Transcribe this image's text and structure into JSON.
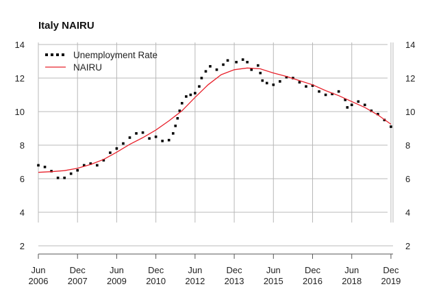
{
  "chart_data": {
    "type": "line",
    "title": "Italy NAIRU",
    "xlabel": "",
    "ylabel": "",
    "ylim": [
      1.5,
      14.2
    ],
    "y_ticks": [
      "2",
      "4",
      "6",
      "8",
      "10",
      "12",
      "14"
    ],
    "x_ticks": [
      {
        "month": "Jun",
        "year": "2006",
        "t": 2006.42
      },
      {
        "month": "Dec",
        "year": "2007",
        "t": 2007.92
      },
      {
        "month": "Jun",
        "year": "2009",
        "t": 2009.42
      },
      {
        "month": "Dec",
        "year": "2010",
        "t": 2010.92
      },
      {
        "month": "Jun",
        "year": "2012",
        "t": 2012.42
      },
      {
        "month": "Dec",
        "year": "2013",
        "t": 2013.92
      },
      {
        "month": "Jun",
        "year": "2015",
        "t": 2015.42
      },
      {
        "month": "Dec",
        "year": "2016",
        "t": 2016.92
      },
      {
        "month": "Jun",
        "year": "2018",
        "t": 2018.42
      },
      {
        "month": "Dec",
        "year": "2019",
        "t": 2019.92
      }
    ],
    "xlim": [
      2006.42,
      2020.0
    ],
    "grid": true,
    "legend_position": "top-left",
    "series": [
      {
        "name": "Unemployment Rate",
        "style": "dotted",
        "color": "#000000",
        "points": [
          [
            2006.42,
            6.8
          ],
          [
            2006.67,
            6.7
          ],
          [
            2006.92,
            6.45
          ],
          [
            2007.17,
            6.05
          ],
          [
            2007.42,
            6.05
          ],
          [
            2007.67,
            6.3
          ],
          [
            2007.92,
            6.5
          ],
          [
            2008.17,
            6.8
          ],
          [
            2008.42,
            6.9
          ],
          [
            2008.67,
            6.8
          ],
          [
            2008.92,
            7.1
          ],
          [
            2009.17,
            7.55
          ],
          [
            2009.42,
            7.8
          ],
          [
            2009.67,
            8.1
          ],
          [
            2009.92,
            8.45
          ],
          [
            2010.17,
            8.7
          ],
          [
            2010.42,
            8.75
          ],
          [
            2010.67,
            8.4
          ],
          [
            2010.92,
            8.5
          ],
          [
            2011.17,
            8.25
          ],
          [
            2011.42,
            8.3
          ],
          [
            2011.58,
            8.7
          ],
          [
            2011.67,
            9.15
          ],
          [
            2011.75,
            9.6
          ],
          [
            2011.83,
            10.05
          ],
          [
            2011.92,
            10.5
          ],
          [
            2012.08,
            10.9
          ],
          [
            2012.25,
            11.0
          ],
          [
            2012.42,
            11.1
          ],
          [
            2012.58,
            11.5
          ],
          [
            2012.67,
            12.0
          ],
          [
            2012.83,
            12.4
          ],
          [
            2013.0,
            12.7
          ],
          [
            2013.25,
            12.5
          ],
          [
            2013.5,
            12.8
          ],
          [
            2013.67,
            13.05
          ],
          [
            2014.0,
            12.95
          ],
          [
            2014.25,
            13.1
          ],
          [
            2014.42,
            12.95
          ],
          [
            2014.58,
            12.5
          ],
          [
            2014.83,
            12.75
          ],
          [
            2014.92,
            12.3
          ],
          [
            2015.0,
            11.85
          ],
          [
            2015.17,
            11.7
          ],
          [
            2015.42,
            11.6
          ],
          [
            2015.67,
            11.8
          ],
          [
            2015.92,
            12.05
          ],
          [
            2016.17,
            12.0
          ],
          [
            2016.42,
            11.75
          ],
          [
            2016.67,
            11.5
          ],
          [
            2016.92,
            11.55
          ],
          [
            2017.17,
            11.2
          ],
          [
            2017.42,
            11.0
          ],
          [
            2017.67,
            11.05
          ],
          [
            2017.92,
            11.2
          ],
          [
            2018.17,
            10.7
          ],
          [
            2018.25,
            10.25
          ],
          [
            2018.42,
            10.4
          ],
          [
            2018.67,
            10.6
          ],
          [
            2018.92,
            10.4
          ],
          [
            2019.17,
            10.05
          ],
          [
            2019.42,
            9.85
          ],
          [
            2019.67,
            9.5
          ],
          [
            2019.92,
            9.1
          ]
        ]
      },
      {
        "name": "NAIRU",
        "style": "solid",
        "color": "#e8202a",
        "points": [
          [
            2006.42,
            6.38
          ],
          [
            2006.92,
            6.42
          ],
          [
            2007.42,
            6.48
          ],
          [
            2007.92,
            6.62
          ],
          [
            2008.42,
            6.85
          ],
          [
            2008.92,
            7.15
          ],
          [
            2009.42,
            7.58
          ],
          [
            2009.92,
            8.05
          ],
          [
            2010.42,
            8.45
          ],
          [
            2010.92,
            8.9
          ],
          [
            2011.42,
            9.45
          ],
          [
            2011.92,
            10.05
          ],
          [
            2012.42,
            10.85
          ],
          [
            2012.92,
            11.6
          ],
          [
            2013.42,
            12.2
          ],
          [
            2013.92,
            12.5
          ],
          [
            2014.42,
            12.6
          ],
          [
            2014.92,
            12.55
          ],
          [
            2015.42,
            12.3
          ],
          [
            2015.92,
            12.1
          ],
          [
            2016.42,
            11.85
          ],
          [
            2016.92,
            11.6
          ],
          [
            2017.42,
            11.25
          ],
          [
            2017.92,
            10.95
          ],
          [
            2018.42,
            10.6
          ],
          [
            2018.92,
            10.25
          ],
          [
            2019.42,
            9.8
          ],
          [
            2019.92,
            9.25
          ]
        ]
      }
    ]
  }
}
